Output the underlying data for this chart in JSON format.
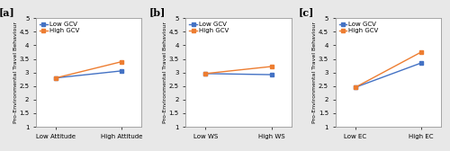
{
  "panels": [
    {
      "label": "[a]",
      "xlabel_low": "Low Attitude",
      "xlabel_high": "High Attitude",
      "ylabel": "Pro-Environmental Travel Behaviour",
      "low_gcv": [
        2.8,
        3.06
      ],
      "high_gcv": [
        2.8,
        3.4
      ],
      "ylim": [
        1,
        5
      ],
      "yticks": [
        1,
        1.5,
        2,
        2.5,
        3,
        3.5,
        4,
        4.5,
        5
      ]
    },
    {
      "label": "[b]",
      "xlabel_low": "Low WS",
      "xlabel_high": "High WS",
      "ylabel": "Pro-Environmental Travel Behaviour",
      "low_gcv": [
        2.96,
        2.92
      ],
      "high_gcv": [
        2.96,
        3.22
      ],
      "ylim": [
        1,
        5
      ],
      "yticks": [
        1,
        1.5,
        2,
        2.5,
        3,
        3.5,
        4,
        4.5,
        5
      ]
    },
    {
      "label": "[c]",
      "xlabel_low": "Low EC",
      "xlabel_high": "High EC",
      "ylabel": "Pro-Environmental Travel Behaviour",
      "low_gcv": [
        2.45,
        3.35
      ],
      "high_gcv": [
        2.45,
        3.75
      ],
      "ylim": [
        1,
        5
      ],
      "yticks": [
        1,
        1.5,
        2,
        2.5,
        3,
        3.5,
        4,
        4.5,
        5
      ]
    }
  ],
  "low_gcv_color": "#4472C4",
  "high_gcv_color": "#ED7D31",
  "low_gcv_label": "Low GCV",
  "high_gcv_label": "High GCV",
  "marker": "s",
  "linewidth": 1.0,
  "markersize": 3,
  "tick_fontsize": 5,
  "ylabel_fontsize": 4.5,
  "xlabel_fontsize": 5,
  "legend_fontsize": 5,
  "panel_label_fontsize": 8,
  "background_color": "#e8e8e8",
  "axes_background": "#ffffff"
}
